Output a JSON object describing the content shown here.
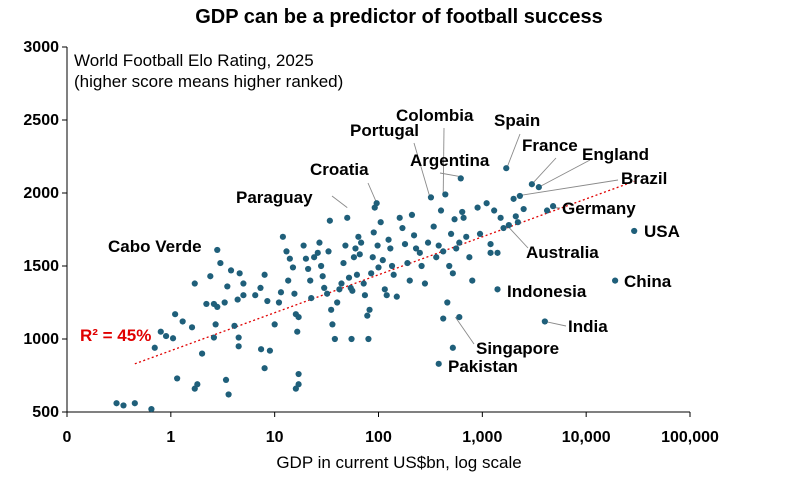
{
  "chart_data": {
    "type": "scatter",
    "title": "GDP can be a predictor of football success",
    "subtitle_lines": [
      "World Football Elo Rating, 2025",
      "(higher score means higher ranked)"
    ],
    "xlabel": "GDP in current US$bn, log scale",
    "ylabel": "",
    "x_scale": "log",
    "xlim": [
      0.1,
      100000
    ],
    "ylim": [
      500,
      3000
    ],
    "x_tick_labels": [
      "0",
      "1",
      "10",
      "100",
      "1,000",
      "10,000",
      "100,000"
    ],
    "y_ticks": [
      500,
      1000,
      1500,
      2000,
      2500,
      3000
    ],
    "trendline_label": "R² = 45%",
    "trendline": {
      "x": [
        0.45,
        29000
      ],
      "y": [
        830,
        2080
      ]
    },
    "marker_color": "#1f5f7a",
    "trendline_color": "#e00000",
    "points": [
      {
        "x": 0.3,
        "y": 560
      },
      {
        "x": 0.35,
        "y": 545
      },
      {
        "x": 0.45,
        "y": 560
      },
      {
        "x": 0.65,
        "y": 520
      },
      {
        "x": 0.7,
        "y": 940
      },
      {
        "x": 0.8,
        "y": 1050
      },
      {
        "x": 0.9,
        "y": 1020
      },
      {
        "x": 1.1,
        "y": 1170
      },
      {
        "x": 1.3,
        "y": 1120
      },
      {
        "x": 1.05,
        "y": 1005
      },
      {
        "x": 1.15,
        "y": 730
      },
      {
        "x": 1.7,
        "y": 660
      },
      {
        "x": 1.8,
        "y": 690
      },
      {
        "x": 1.6,
        "y": 1080
      },
      {
        "x": 1.7,
        "y": 1380
      },
      {
        "x": 2.0,
        "y": 900
      },
      {
        "x": 2.2,
        "y": 1240
      },
      {
        "x": 2.4,
        "y": 1430
      },
      {
        "x": 2.6,
        "y": 1240
      },
      {
        "x": 2.8,
        "y": 1220
      },
      {
        "x": 2.7,
        "y": 1100
      },
      {
        "x": 2.6,
        "y": 1010
      },
      {
        "x": 2.8,
        "y": 1610
      },
      {
        "x": 3.0,
        "y": 1520
      },
      {
        "x": 3.3,
        "y": 1250
      },
      {
        "x": 3.4,
        "y": 720
      },
      {
        "x": 3.6,
        "y": 620
      },
      {
        "x": 3.5,
        "y": 1360
      },
      {
        "x": 3.8,
        "y": 1470
      },
      {
        "x": 4.1,
        "y": 1090
      },
      {
        "x": 4.4,
        "y": 1270
      },
      {
        "x": 4.6,
        "y": 1450
      },
      {
        "x": 5.0,
        "y": 1380
      },
      {
        "x": 5.0,
        "y": 1300
      },
      {
        "x": 4.5,
        "y": 950
      },
      {
        "x": 4.5,
        "y": 1010
      },
      {
        "x": 6.5,
        "y": 1300
      },
      {
        "x": 7.3,
        "y": 1350
      },
      {
        "x": 8.0,
        "y": 1440
      },
      {
        "x": 8.5,
        "y": 1260
      },
      {
        "x": 7.4,
        "y": 930
      },
      {
        "x": 8.0,
        "y": 800
      },
      {
        "x": 9.0,
        "y": 920
      },
      {
        "x": 10.0,
        "y": 1100
      },
      {
        "x": 11.0,
        "y": 1250
      },
      {
        "x": 11.5,
        "y": 1320
      },
      {
        "x": 12.0,
        "y": 1700
      },
      {
        "x": 13.0,
        "y": 1600
      },
      {
        "x": 13.5,
        "y": 1400
      },
      {
        "x": 14.0,
        "y": 1550
      },
      {
        "x": 15.0,
        "y": 1490
      },
      {
        "x": 15.5,
        "y": 1310
      },
      {
        "x": 16.0,
        "y": 1170
      },
      {
        "x": 17.0,
        "y": 1150
      },
      {
        "x": 16.5,
        "y": 1050
      },
      {
        "x": 16.0,
        "y": 660
      },
      {
        "x": 17.0,
        "y": 690
      },
      {
        "x": 17.0,
        "y": 760
      },
      {
        "x": 19.0,
        "y": 1640
      },
      {
        "x": 20.0,
        "y": 1550
      },
      {
        "x": 21.0,
        "y": 1480
      },
      {
        "x": 22.0,
        "y": 1400
      },
      {
        "x": 22.5,
        "y": 1280
      },
      {
        "x": 24.0,
        "y": 1560
      },
      {
        "x": 26.0,
        "y": 1590
      },
      {
        "x": 27.0,
        "y": 1660
      },
      {
        "x": 28.0,
        "y": 1500
      },
      {
        "x": 29.0,
        "y": 1430
      },
      {
        "x": 30.0,
        "y": 1350
      },
      {
        "x": 32.0,
        "y": 1310
      },
      {
        "x": 33.0,
        "y": 1600
      },
      {
        "x": 34.0,
        "y": 1810
      },
      {
        "x": 35.0,
        "y": 1200
      },
      {
        "x": 36.0,
        "y": 1100
      },
      {
        "x": 38.0,
        "y": 1000
      },
      {
        "x": 40.0,
        "y": 1250
      },
      {
        "x": 42.0,
        "y": 1340
      },
      {
        "x": 44.0,
        "y": 1380
      },
      {
        "x": 46.0,
        "y": 1520
      },
      {
        "x": 48.0,
        "y": 1640
      },
      {
        "x": 50.0,
        "y": 1830
      },
      {
        "x": 52.0,
        "y": 1420
      },
      {
        "x": 54.0,
        "y": 1350
      },
      {
        "x": 55.0,
        "y": 1000
      },
      {
        "x": 56.0,
        "y": 1330
      },
      {
        "x": 58.0,
        "y": 1560
      },
      {
        "x": 60.0,
        "y": 1620
      },
      {
        "x": 62.0,
        "y": 1440
      },
      {
        "x": 64.0,
        "y": 1700
      },
      {
        "x": 66.0,
        "y": 1580
      },
      {
        "x": 68.0,
        "y": 1660
      },
      {
        "x": 72.0,
        "y": 1380
      },
      {
        "x": 74.0,
        "y": 1300
      },
      {
        "x": 78.0,
        "y": 1160
      },
      {
        "x": 80.0,
        "y": 1000
      },
      {
        "x": 82.0,
        "y": 1200
      },
      {
        "x": 85.0,
        "y": 1450
      },
      {
        "x": 88.0,
        "y": 1560
      },
      {
        "x": 90.0,
        "y": 1730
      },
      {
        "x": 92.0,
        "y": 1900
      },
      {
        "x": 96.0,
        "y": 1930
      },
      {
        "x": 98.0,
        "y": 1640
      },
      {
        "x": 100.0,
        "y": 1490
      },
      {
        "x": 105.0,
        "y": 1800
      },
      {
        "x": 110.0,
        "y": 1540
      },
      {
        "x": 115.0,
        "y": 1340
      },
      {
        "x": 120.0,
        "y": 1300
      },
      {
        "x": 125.0,
        "y": 1680
      },
      {
        "x": 130.0,
        "y": 1620
      },
      {
        "x": 135.0,
        "y": 1500
      },
      {
        "x": 140.0,
        "y": 1440
      },
      {
        "x": 150.0,
        "y": 1290
      },
      {
        "x": 160.0,
        "y": 1830
      },
      {
        "x": 170.0,
        "y": 1760
      },
      {
        "x": 180.0,
        "y": 1650
      },
      {
        "x": 190.0,
        "y": 1520
      },
      {
        "x": 200.0,
        "y": 1400
      },
      {
        "x": 210.0,
        "y": 1850
      },
      {
        "x": 220.0,
        "y": 1710
      },
      {
        "x": 230.0,
        "y": 1620
      },
      {
        "x": 250.0,
        "y": 1590
      },
      {
        "x": 260.0,
        "y": 1500
      },
      {
        "x": 280.0,
        "y": 1380
      },
      {
        "x": 300.0,
        "y": 1660
      },
      {
        "x": 320.0,
        "y": 1970
      },
      {
        "x": 340.0,
        "y": 1770
      },
      {
        "x": 360.0,
        "y": 1560
      },
      {
        "x": 380.0,
        "y": 1640
      },
      {
        "x": 400.0,
        "y": 1880
      },
      {
        "x": 420.0,
        "y": 1600
      },
      {
        "x": 440.0,
        "y": 1990
      },
      {
        "x": 460.0,
        "y": 1250
      },
      {
        "x": 480.0,
        "y": 1500
      },
      {
        "x": 500.0,
        "y": 1720
      },
      {
        "x": 520.0,
        "y": 1450
      },
      {
        "x": 540.0,
        "y": 1820
      },
      {
        "x": 560.0,
        "y": 1620
      },
      {
        "x": 600.0,
        "y": 1660
      },
      {
        "x": 620.0,
        "y": 2100
      },
      {
        "x": 640.0,
        "y": 1870
      },
      {
        "x": 660.0,
        "y": 1830
      },
      {
        "x": 700.0,
        "y": 1700
      },
      {
        "x": 750.0,
        "y": 1560
      },
      {
        "x": 800.0,
        "y": 1400
      },
      {
        "x": 900.0,
        "y": 1900
      },
      {
        "x": 950.0,
        "y": 1720
      },
      {
        "x": 1100.0,
        "y": 1930
      },
      {
        "x": 1200.0,
        "y": 1650
      },
      {
        "x": 1300.0,
        "y": 1880
      },
      {
        "x": 1400.0,
        "y": 1590
      },
      {
        "x": 1500.0,
        "y": 1830
      },
      {
        "x": 1600.0,
        "y": 1760
      },
      {
        "x": 1700.0,
        "y": 2170
      },
      {
        "x": 1800.0,
        "y": 1780
      },
      {
        "x": 2000.0,
        "y": 1960
      },
      {
        "x": 2100.0,
        "y": 1840
      },
      {
        "x": 2200.0,
        "y": 1800
      },
      {
        "x": 2300.0,
        "y": 1980
      },
      {
        "x": 2500.0,
        "y": 1890
      },
      {
        "x": 3000.0,
        "y": 2060
      },
      {
        "x": 3500.0,
        "y": 2040
      },
      {
        "x": 4200.0,
        "y": 1880
      },
      {
        "x": 4800.0,
        "y": 1910
      },
      {
        "x": 420.0,
        "y": 1140
      },
      {
        "x": 520.0,
        "y": 940
      },
      {
        "x": 600.0,
        "y": 1150
      },
      {
        "x": 380.0,
        "y": 830
      },
      {
        "x": 1400.0,
        "y": 1340
      },
      {
        "x": 4000.0,
        "y": 1120
      },
      {
        "x": 19000.0,
        "y": 1400
      },
      {
        "x": 29000.0,
        "y": 1740
      },
      {
        "x": 1200.0,
        "y": 1590
      }
    ],
    "annotations": [
      {
        "label": "Cabo Verde",
        "point": {
          "x": 0.95,
          "y": 1060
        }
      },
      {
        "label": "Paraguay",
        "point": {
          "x": 50.0,
          "y": 1900
        }
      },
      {
        "label": "Croatia",
        "point": {
          "x": 95.0,
          "y": 1940
        }
      },
      {
        "label": "Portugal",
        "point": {
          "x": 310.0,
          "y": 1980
        }
      },
      {
        "label": "Colombia",
        "point": {
          "x": 420.0,
          "y": 1990
        }
      },
      {
        "label": "Argentina",
        "point": {
          "x": 640.0,
          "y": 2110
        }
      },
      {
        "label": "Spain",
        "point": {
          "x": 1720.0,
          "y": 2170
        }
      },
      {
        "label": "France",
        "point": {
          "x": 3000.0,
          "y": 2060
        }
      },
      {
        "label": "England",
        "point": {
          "x": 3500.0,
          "y": 2040
        }
      },
      {
        "label": "Brazil",
        "point": {
          "x": 2150.0,
          "y": 1980
        }
      },
      {
        "label": "Germany",
        "point": {
          "x": 4700.0,
          "y": 1900
        }
      },
      {
        "label": "USA",
        "point": {
          "x": 29000.0,
          "y": 1740
        }
      },
      {
        "label": "Australia",
        "point": {
          "x": 1720.0,
          "y": 1780
        }
      },
      {
        "label": "China",
        "point": {
          "x": 19000.0,
          "y": 1400
        }
      },
      {
        "label": "Indonesia",
        "point": {
          "x": 1400.0,
          "y": 1340
        }
      },
      {
        "label": "India",
        "point": {
          "x": 4000.0,
          "y": 1120
        }
      },
      {
        "label": "Singapore",
        "point": {
          "x": 550.0,
          "y": 1150
        }
      },
      {
        "label": "Pakistan",
        "point": {
          "x": 380.0,
          "y": 830
        }
      }
    ]
  }
}
